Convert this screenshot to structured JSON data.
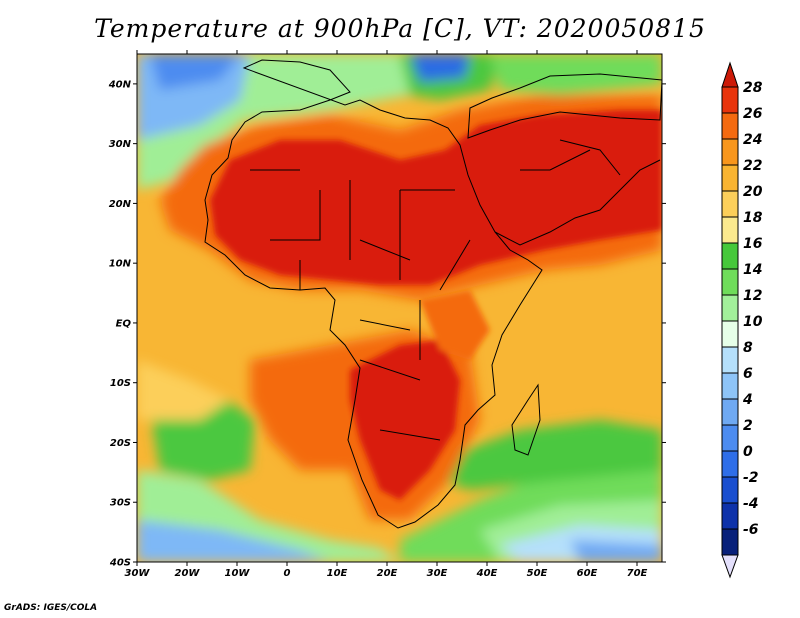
{
  "map": {
    "title": "Temperature at 900hPa [C], VT: 2020050815",
    "credit": "GrADS: IGES/COLA",
    "lon_ticks": [
      "30W",
      "20W",
      "10W",
      "0",
      "10E",
      "20E",
      "30E",
      "40E",
      "50E",
      "60E",
      "70E"
    ],
    "lat_ticks": [
      "40N",
      "30N",
      "20N",
      "10N",
      "EQ",
      "10S",
      "20S",
      "30S",
      "40S"
    ],
    "extent": {
      "lon_min": -30,
      "lon_max": 75,
      "lat_min": -40,
      "lat_max": 45
    },
    "colorbar": {
      "labels": [
        "28",
        "26",
        "24",
        "22",
        "20",
        "18",
        "16",
        "14",
        "12",
        "10",
        "8",
        "6",
        "4",
        "2",
        "0",
        "-2",
        "-4",
        "-6"
      ],
      "colors": [
        "#e8340c",
        "#f46a10",
        "#f8961c",
        "#f9b431",
        "#fccf5a",
        "#fbe98e",
        "#46c83a",
        "#6fdc5a",
        "#a2f09a",
        "#e6ffe8",
        "#b5e0fb",
        "#8ec4f7",
        "#6fa9f3",
        "#4d8cf0",
        "#2f6ee8",
        "#1a4fd0",
        "#0e32aa",
        "#08207a"
      ],
      "top_arrow_color": "#cc1a08",
      "bottom_arrow_color": "#e4e0fc"
    },
    "colors": {
      "hot": "#d91c0b",
      "warm": "#f39120",
      "mild": "#f8b634",
      "cool_green": "#4cc840",
      "light_green": "#a0ee96",
      "cold_blue": "#7eb8f6",
      "deep_blue": "#2c6ce4"
    }
  }
}
